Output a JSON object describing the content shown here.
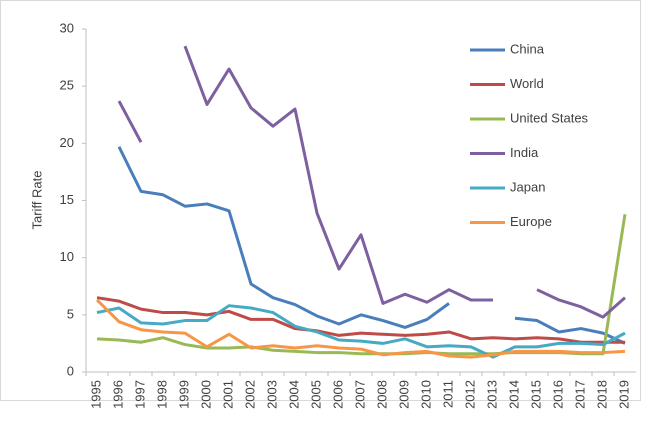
{
  "chart_data": {
    "type": "line",
    "ylabel": "Tariff Rate",
    "categories": [
      "1995",
      "1996",
      "1997",
      "1998",
      "1999",
      "2000",
      "2001",
      "2002",
      "2003",
      "2004",
      "2005",
      "2006",
      "2007",
      "2008",
      "2009",
      "2010",
      "2011",
      "2012",
      "2013",
      "2014",
      "2015",
      "2016",
      "2017",
      "2018",
      "2019"
    ],
    "ylim": [
      0,
      30
    ],
    "yticks": [
      0,
      5,
      10,
      15,
      20,
      25,
      30
    ],
    "grid": false,
    "legend": "upper right",
    "series": [
      {
        "name": "China",
        "color": "#4a7ebb",
        "values": [
          null,
          19.7,
          15.8,
          15.5,
          14.5,
          14.7,
          14.1,
          7.7,
          6.5,
          5.9,
          4.9,
          4.2,
          5.0,
          4.5,
          3.9,
          4.6,
          6.0,
          null,
          null,
          4.7,
          4.5,
          3.5,
          3.8,
          3.4,
          2.5
        ]
      },
      {
        "name": "World",
        "color": "#be4b48",
        "values": [
          6.5,
          6.2,
          5.5,
          5.2,
          5.2,
          5.0,
          5.3,
          4.6,
          4.6,
          3.8,
          3.6,
          3.2,
          3.4,
          3.3,
          3.2,
          3.3,
          3.5,
          2.9,
          3.0,
          2.9,
          3.0,
          2.9,
          2.6,
          2.6,
          2.6
        ]
      },
      {
        "name": "United States",
        "color": "#98b954",
        "values": [
          2.9,
          2.8,
          2.6,
          3.0,
          2.4,
          2.1,
          2.1,
          2.2,
          1.9,
          1.8,
          1.7,
          1.7,
          1.6,
          1.6,
          1.6,
          1.7,
          1.6,
          1.6,
          1.6,
          1.7,
          1.7,
          1.7,
          1.6,
          1.6,
          13.8
        ]
      },
      {
        "name": "India",
        "color": "#7d60a0",
        "values": [
          null,
          23.7,
          20.1,
          null,
          28.5,
          23.4,
          26.5,
          23.1,
          21.5,
          23.0,
          13.9,
          9.0,
          12.0,
          6.0,
          6.8,
          6.1,
          7.2,
          6.3,
          6.3,
          null,
          7.2,
          6.3,
          5.7,
          4.8,
          6.5
        ]
      },
      {
        "name": "Japan",
        "color": "#46aac5",
        "values": [
          5.2,
          5.6,
          4.3,
          4.2,
          4.5,
          4.5,
          5.8,
          5.6,
          5.2,
          4.0,
          3.5,
          2.8,
          2.7,
          2.5,
          2.9,
          2.2,
          2.3,
          2.2,
          1.3,
          2.2,
          2.2,
          2.5,
          2.5,
          2.4,
          3.4
        ]
      },
      {
        "name": "Europe",
        "color": "#f79646",
        "values": [
          6.3,
          4.4,
          3.7,
          3.5,
          3.4,
          2.2,
          3.3,
          2.1,
          2.3,
          2.1,
          2.3,
          2.1,
          2.0,
          1.5,
          1.7,
          1.8,
          1.4,
          1.3,
          1.5,
          1.8,
          1.8,
          1.8,
          1.7,
          1.7,
          1.8
        ]
      }
    ]
  }
}
